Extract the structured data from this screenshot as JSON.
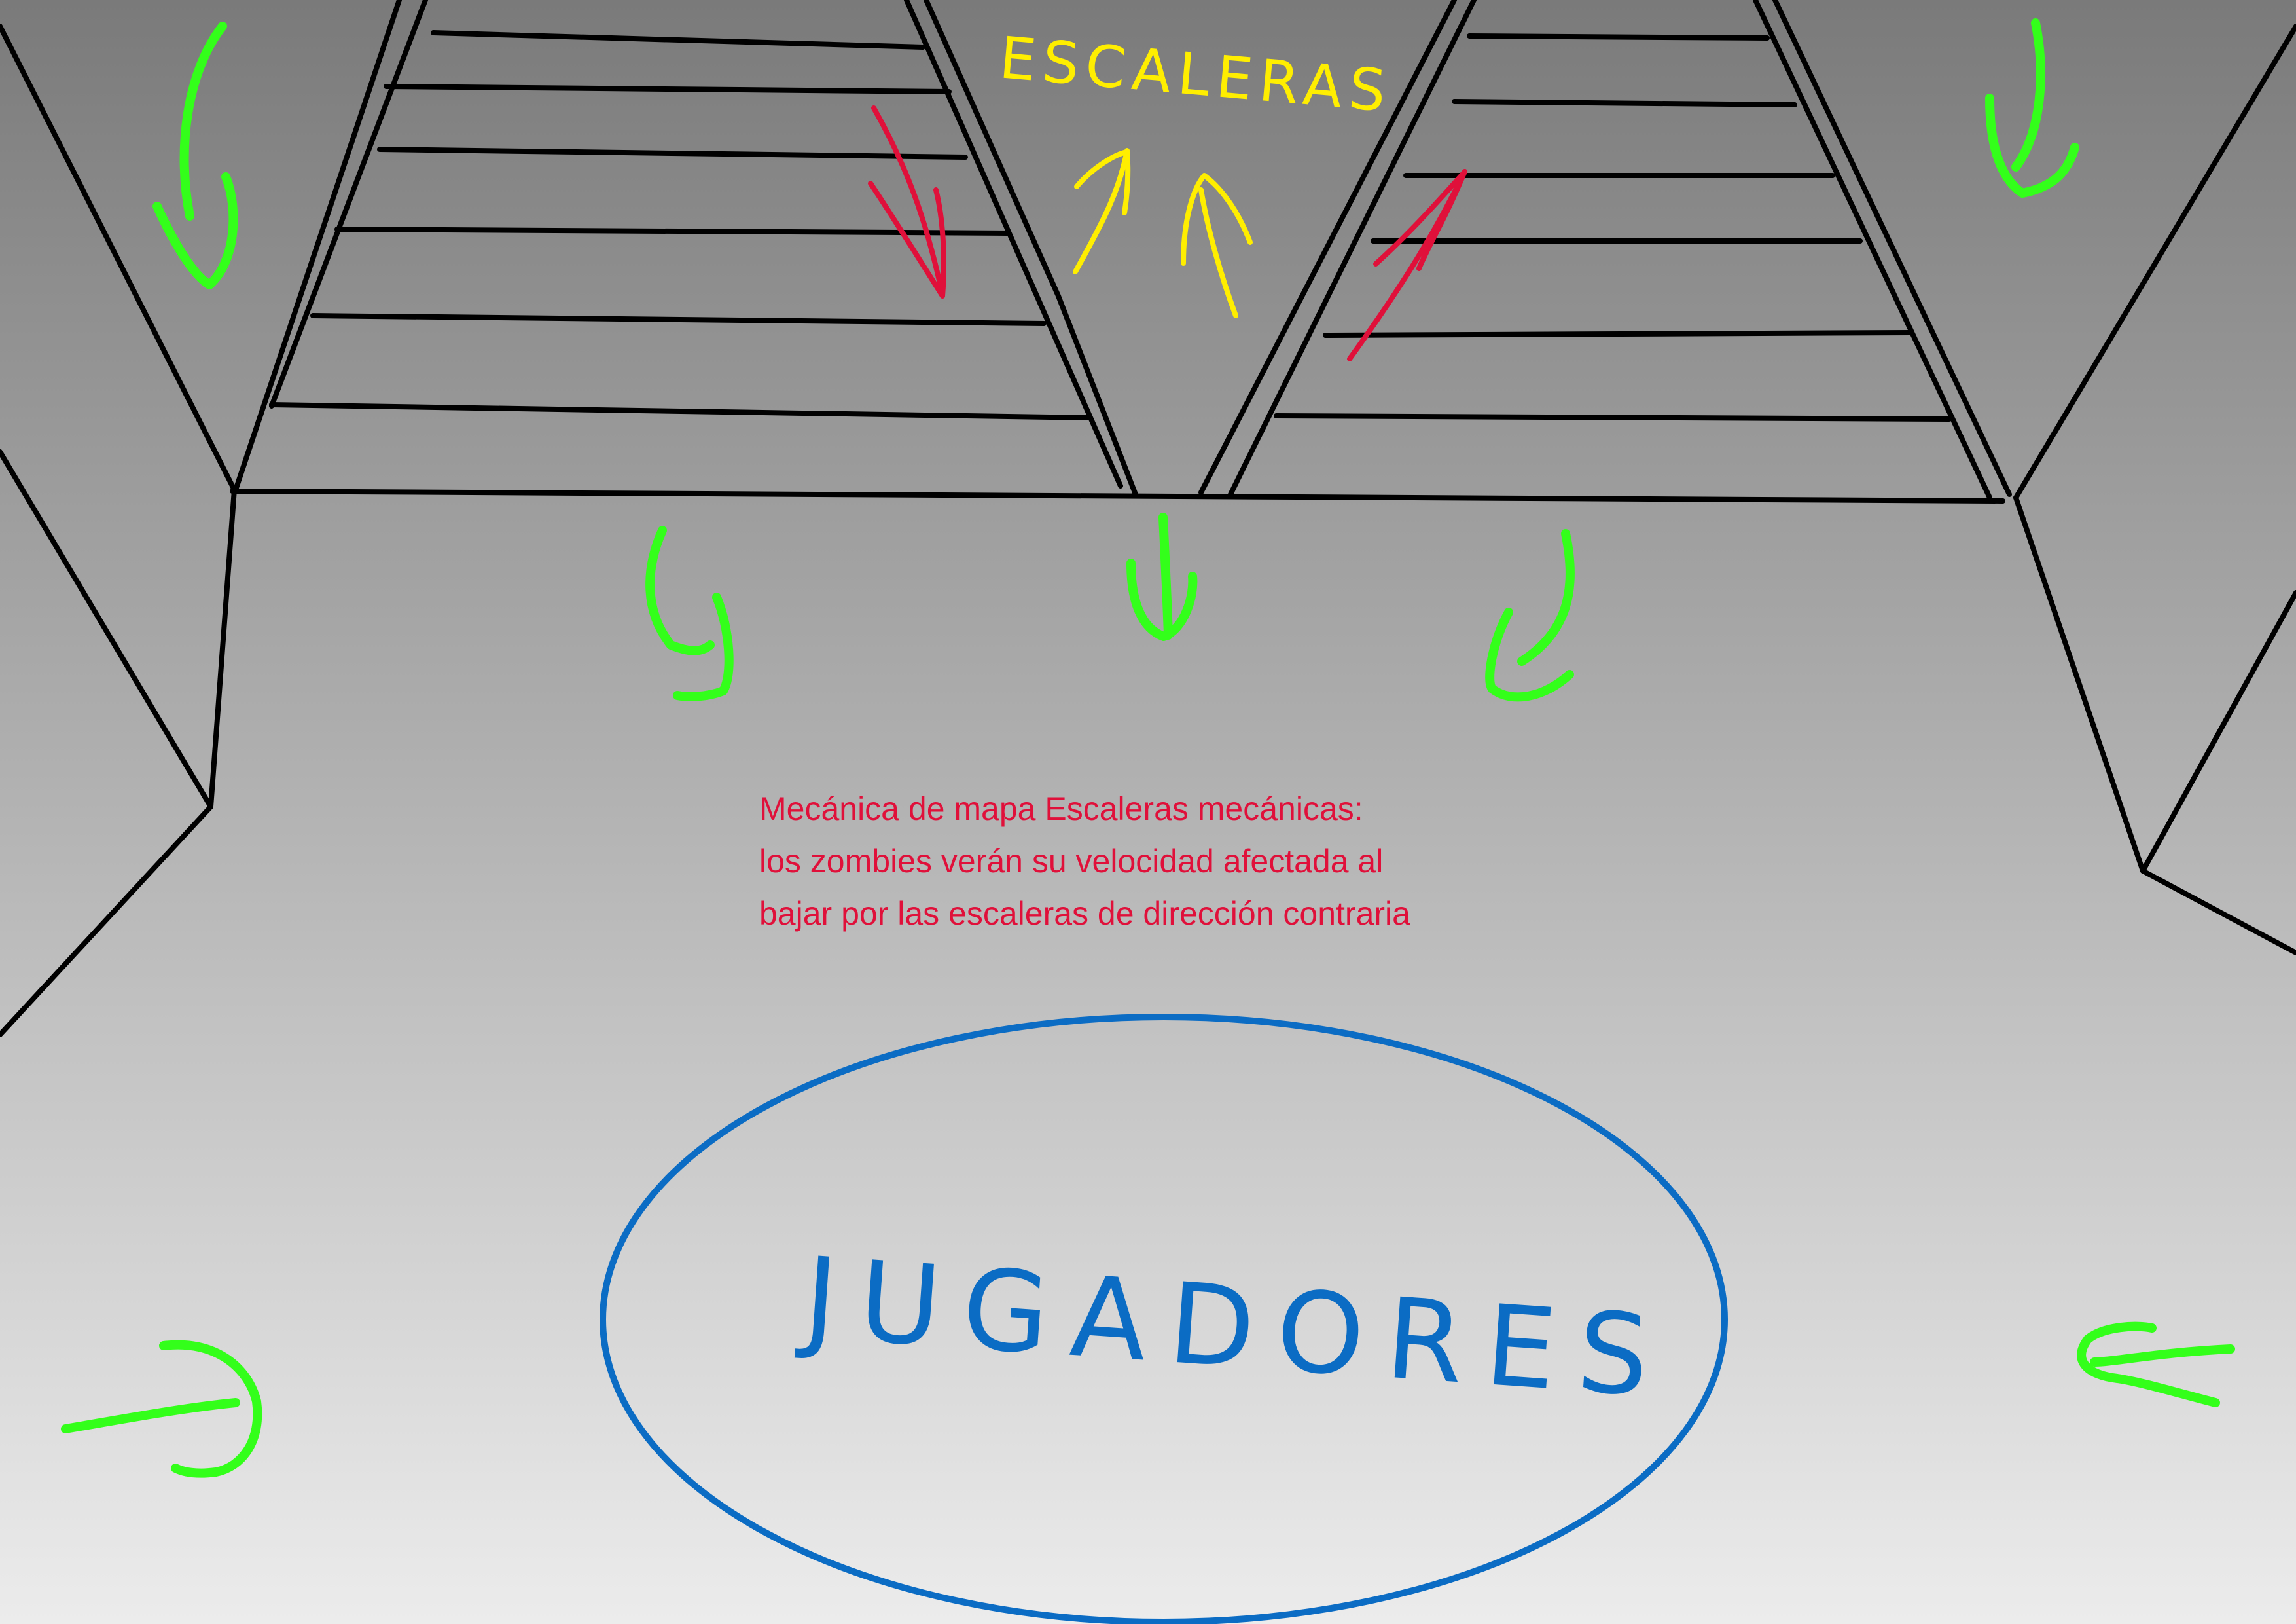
{
  "labels": {
    "escaleras": "ESCALERAS",
    "jugadores": "JUGADORES"
  },
  "note": {
    "lines": [
      "Mecánica de mapa Escaleras mecánicas:",
      "los zombies verán su velocidad afectada al",
      "bajar por las escaleras de dirección contraria"
    ]
  },
  "colors": {
    "background_top": "#7a7a7a",
    "background_bottom": "#ececec",
    "outline": "#000000",
    "zombie_flow_arrows": "#33ff1a",
    "escalator_direction_arrows": "#e0103a",
    "stairs_direction_arrows": "#ffee00",
    "escaleras_label": "#ffee00",
    "players_area": "#0b6cc4",
    "note_text": "#e0103a"
  },
  "icons": [
    "curved-arrow-icon",
    "straight-arrow-icon",
    "up-arrow-icon",
    "down-arrow-icon"
  ]
}
